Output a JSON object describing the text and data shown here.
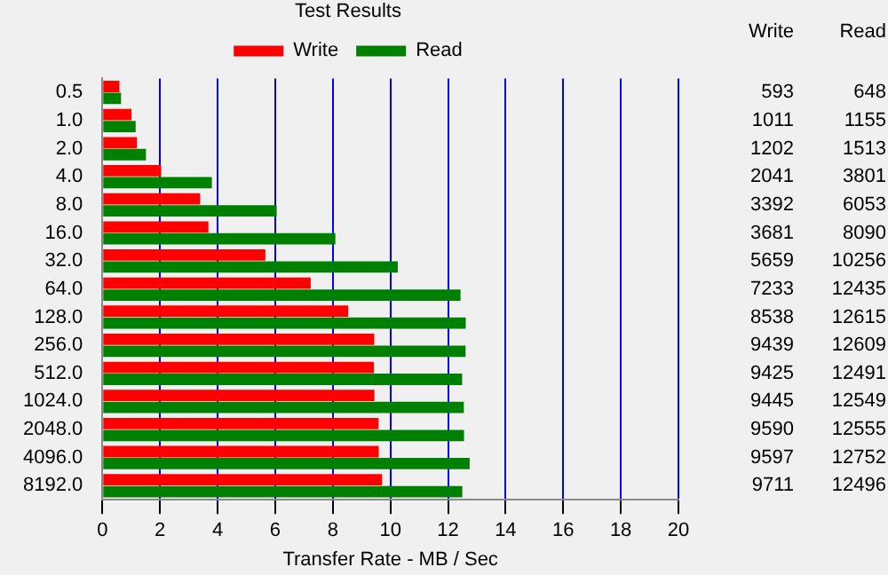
{
  "chart_data": {
    "type": "bar",
    "orientation": "horizontal",
    "title": "Test Results",
    "xlabel": "Transfer Rate - MB / Sec",
    "categories": [
      "0.5",
      "1.0",
      "2.0",
      "4.0",
      "8.0",
      "16.0",
      "32.0",
      "64.0",
      "128.0",
      "256.0",
      "512.0",
      "1024.0",
      "2048.0",
      "4096.0",
      "8192.0"
    ],
    "series": [
      {
        "name": "Write",
        "color": "#ff0000",
        "values": [
          0.593,
          1.011,
          1.202,
          2.041,
          3.392,
          3.681,
          5.659,
          7.233,
          8.538,
          9.439,
          9.425,
          9.445,
          9.59,
          9.597,
          9.711
        ]
      },
      {
        "name": "Read",
        "color": "#008000",
        "values": [
          0.648,
          1.155,
          1.513,
          3.801,
          6.053,
          8.09,
          10.256,
          12.435,
          12.615,
          12.609,
          12.491,
          12.549,
          12.555,
          12.752,
          12.496
        ]
      }
    ],
    "annotations": [
      "Write",
      "Read",
      "593",
      "648",
      "1011",
      "1155",
      "1202",
      "1513",
      "2041",
      "3801",
      "3392",
      "6053",
      "3681",
      "8090",
      "5659",
      "10256",
      "7233",
      "12435",
      "8538",
      "12615",
      "9439",
      "12609",
      "9425",
      "12491",
      "9445",
      "12549",
      "9590",
      "12555",
      "9597",
      "12752",
      "9711",
      "12496"
    ],
    "xlim": [
      0,
      20
    ],
    "xticks": [
      0,
      2,
      4,
      6,
      8,
      10,
      12,
      14,
      16,
      18,
      20
    ],
    "grid": "x",
    "legend": "top"
  }
}
